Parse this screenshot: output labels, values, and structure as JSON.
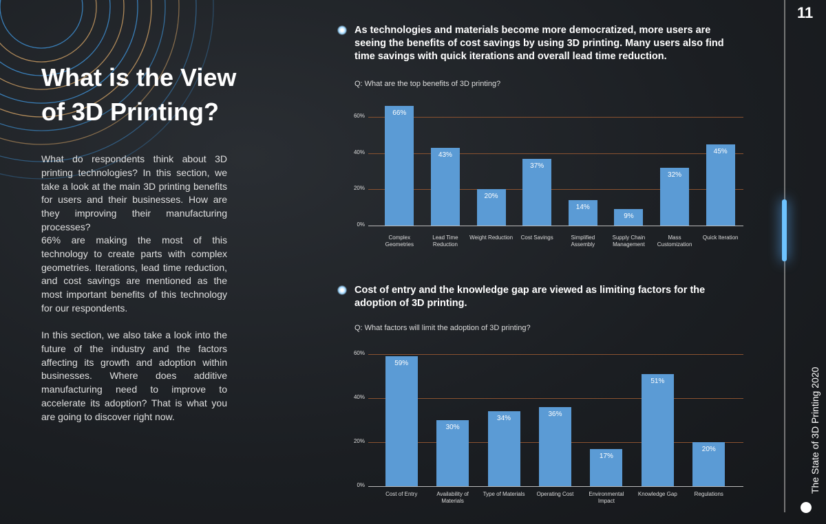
{
  "page_number": "11",
  "sidebar_title": "The State of 3D Printing 2020",
  "heading": "What is the View of 3D Printing?",
  "paragraphs": [
    "What do respondents think about 3D printing technologies? In this section, we take a look at the main 3D printing benefits for users and their businesses. How are they improving their manufacturing processes?",
    "66% are making the most of this technology to create parts with complex geometries. Iterations, lead time reduction, and cost savings are mentioned as the most important benefits of this technology for our respondents.",
    "In this section, we also take a look into the future of the industry and the factors affecting its growth and adoption within businesses. Where does additive manufacturing need to improve to accelerate its adoption? That is what you are going to discover right now."
  ],
  "chart_data": [
    {
      "type": "bar",
      "title": "As technologies and materials become more democratized, more users are seeing the benefits of cost savings by using 3D printing. Many users also find time savings with quick iterations and overall lead time reduction.",
      "subtitle": "Q: What are the top benefits of 3D printing?",
      "categories": [
        "Complex Geometries",
        "Lead Time Reduction",
        "Weight Reduction",
        "Cost Savings",
        "Simplified Assembly",
        "Supply Chain Management",
        "Mass Customization",
        "Quick Iteration"
      ],
      "values": [
        66,
        43,
        20,
        37,
        14,
        9,
        32,
        45
      ],
      "value_labels": [
        "66%",
        "43%",
        "20%",
        "37%",
        "14%",
        "9%",
        "32%",
        "45%"
      ],
      "color": "#5b9bd5",
      "ylim": [
        0,
        60
      ],
      "yticks": [
        {
          "value": 0,
          "label": "0%"
        },
        {
          "value": 20,
          "label": "20%"
        },
        {
          "value": 40,
          "label": "40%"
        },
        {
          "value": 60,
          "label": "60%"
        }
      ],
      "grid": true
    },
    {
      "type": "bar",
      "title": "Cost of entry and the knowledge gap are viewed as limiting factors for the adoption of 3D printing.",
      "subtitle": "Q: What factors will limit the adoption of 3D printing?",
      "categories": [
        "Cost of Entry",
        "Availability of Materials",
        "Type of Materials",
        "Operating Cost",
        "Environmental Impact",
        "Knowledge Gap",
        "Regulations"
      ],
      "values": [
        59,
        30,
        34,
        36,
        17,
        51,
        20
      ],
      "value_labels": [
        "59%",
        "30%",
        "34%",
        "36%",
        "17%",
        "51%",
        "20%"
      ],
      "color": "#5b9bd5",
      "ylim": [
        0,
        60
      ],
      "yticks": [
        {
          "value": 0,
          "label": "0%"
        },
        {
          "value": 20,
          "label": "20%"
        },
        {
          "value": 40,
          "label": "40%"
        },
        {
          "value": 60,
          "label": "60%"
        }
      ],
      "grid": true
    }
  ]
}
